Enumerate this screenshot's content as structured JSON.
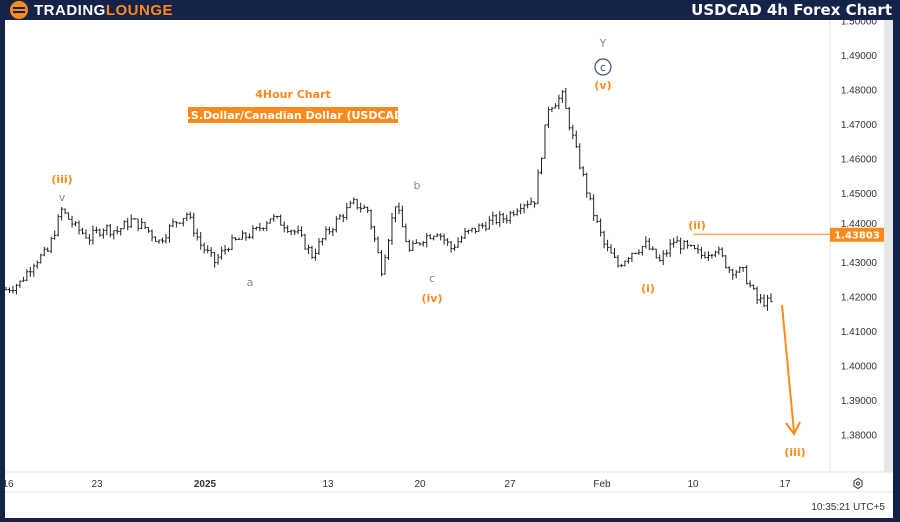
{
  "header": {
    "logo_part1": "TRADING",
    "logo_part2": "LOUNGE",
    "title": "USDCAD 4h Forex Chart"
  },
  "chart_titles": {
    "timeframe": "4Hour Chart",
    "instrument": "U.S.Dollar/Canadian Dollar (USDCAD)"
  },
  "colors": {
    "frame": "#15234a",
    "accent": "#ff8a1c",
    "bars": "#222222",
    "wave_gray": "#888888",
    "circle_label": "#3b4a7a"
  },
  "chart_data": {
    "type": "ohlc",
    "symbol": "USDCAD",
    "timeframe": "4h",
    "y_ticks": [
      "1.50000",
      "1.49000",
      "1.48000",
      "1.47000",
      "1.46000",
      "1.45000",
      "1.44000",
      "1.43000",
      "1.42000",
      "1.41000",
      "1.40000",
      "1.39000",
      "1.38000"
    ],
    "ylim": [
      1.375,
      1.503
    ],
    "x_ticks": [
      "16",
      "23",
      "2025",
      "13",
      "20",
      "27",
      "Feb",
      "10",
      "17"
    ],
    "closes": [
      1.422,
      1.424,
      1.43,
      1.433,
      1.445,
      1.44,
      1.437,
      1.44,
      1.439,
      1.442,
      1.44,
      1.436,
      1.441,
      1.444,
      1.435,
      1.43,
      1.435,
      1.437,
      1.439,
      1.443,
      1.441,
      1.438,
      1.432,
      1.438,
      1.443,
      1.447,
      1.445,
      1.428,
      1.447,
      1.433,
      1.437,
      1.439,
      1.434,
      1.438,
      1.44,
      1.442,
      1.443,
      1.447,
      1.448,
      1.475,
      1.478,
      1.462,
      1.447,
      1.435,
      1.429,
      1.433,
      1.435,
      1.43,
      1.436,
      1.434,
      1.432,
      1.434,
      1.428,
      1.427,
      1.419,
      1.418
    ],
    "price_line": {
      "value": "1.43803"
    },
    "wave_labels": [
      {
        "text": "(iii)",
        "color": "orange"
      },
      {
        "text": "v",
        "color": "gray"
      },
      {
        "text": "a",
        "color": "gray"
      },
      {
        "text": "b",
        "color": "gray"
      },
      {
        "text": "c",
        "color": "gray"
      },
      {
        "text": "(iv)",
        "color": "orange"
      },
      {
        "text": "Y",
        "color": "gray"
      },
      {
        "text": "c",
        "color": "circle"
      },
      {
        "text": "(v)",
        "color": "orange"
      },
      {
        "text": "(i)",
        "color": "orange"
      },
      {
        "text": "(ii)",
        "color": "orange"
      },
      {
        "text": "(iii)",
        "color": "orange"
      }
    ],
    "projection": "down arrow to (iii)"
  },
  "footer": {
    "clock": "10:35:21 UTC+5",
    "settings_icon": "gear-icon"
  }
}
